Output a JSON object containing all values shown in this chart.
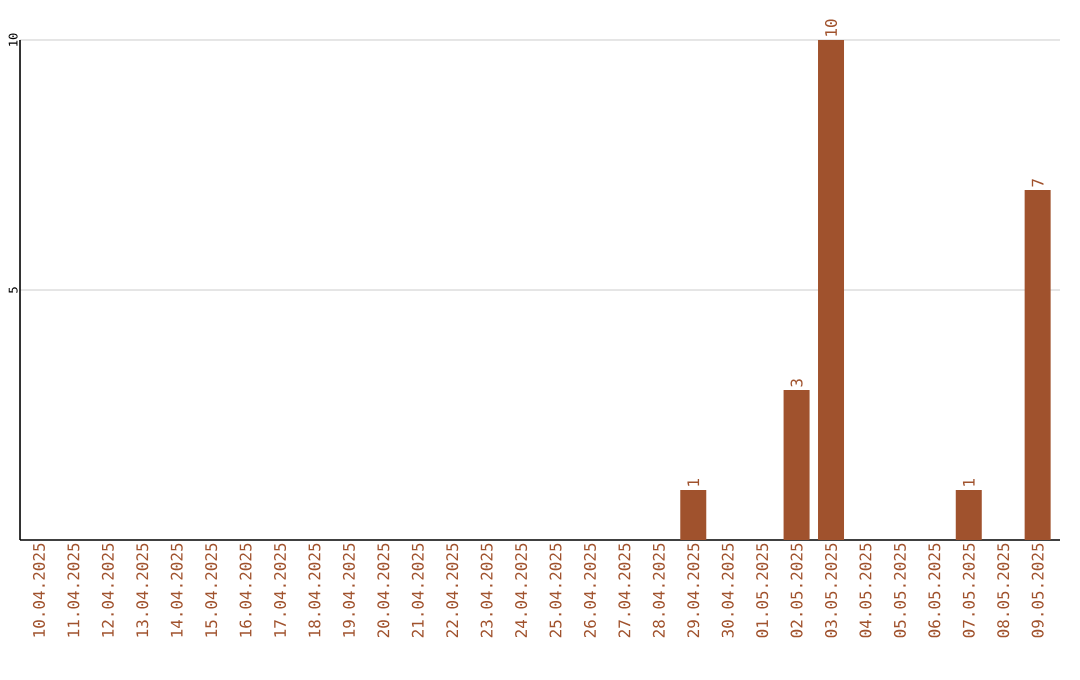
{
  "chart_data": {
    "type": "bar",
    "categories": [
      "10.04.2025",
      "11.04.2025",
      "12.04.2025",
      "13.04.2025",
      "14.04.2025",
      "15.04.2025",
      "16.04.2025",
      "17.04.2025",
      "18.04.2025",
      "19.04.2025",
      "20.04.2025",
      "21.04.2025",
      "22.04.2025",
      "23.04.2025",
      "24.04.2025",
      "25.04.2025",
      "26.04.2025",
      "27.04.2025",
      "28.04.2025",
      "29.04.2025",
      "30.04.2025",
      "01.05.2025",
      "02.05.2025",
      "03.05.2025",
      "04.05.2025",
      "05.05.2025",
      "06.05.2025",
      "07.05.2025",
      "08.05.2025",
      "09.05.2025"
    ],
    "values": [
      0,
      0,
      0,
      0,
      0,
      0,
      0,
      0,
      0,
      0,
      0,
      0,
      0,
      0,
      0,
      0,
      0,
      0,
      0,
      1,
      0,
      0,
      3,
      10,
      0,
      0,
      0,
      1,
      0,
      7
    ],
    "value_labels": [
      null,
      null,
      null,
      null,
      null,
      null,
      null,
      null,
      null,
      null,
      null,
      null,
      null,
      null,
      null,
      null,
      null,
      null,
      null,
      "1",
      null,
      null,
      "3",
      "10",
      null,
      null,
      null,
      "1",
      null,
      "7"
    ],
    "color": "#a0522d",
    "ylim": [
      0,
      10
    ],
    "yticks": [
      5,
      10
    ],
    "grid": "y"
  }
}
